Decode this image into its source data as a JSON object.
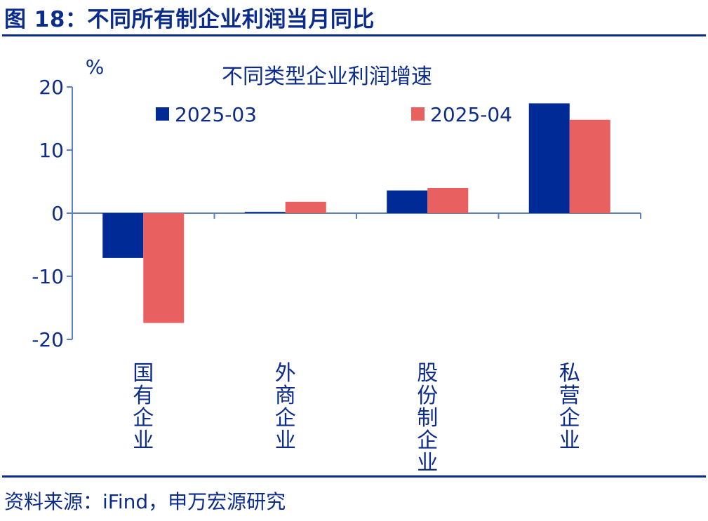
{
  "figure_title": "图 18：不同所有制企业利润当月同比",
  "source_note": "资料来源：iFind，申万宏源研究",
  "colors": {
    "text": "#0b2c8c",
    "axis": "#5b7fc4",
    "series1": "#002a96",
    "series2": "#e86060"
  },
  "chart_data": {
    "type": "bar",
    "title": "不同类型企业利润增速",
    "ylabel": "%",
    "xlabel": "",
    "ylim": [
      -20,
      20
    ],
    "yticks": [
      20,
      10,
      0,
      -10,
      -20
    ],
    "categories": [
      "国有企业",
      "外商企业",
      "股份制企业",
      "私营企业"
    ],
    "series": [
      {
        "name": "2025-03",
        "values": [
          -7.1,
          0.2,
          3.6,
          17.4
        ]
      },
      {
        "name": "2025-04",
        "values": [
          -17.4,
          1.8,
          4.0,
          14.8
        ]
      }
    ],
    "legend_position": "top",
    "grid": false
  }
}
